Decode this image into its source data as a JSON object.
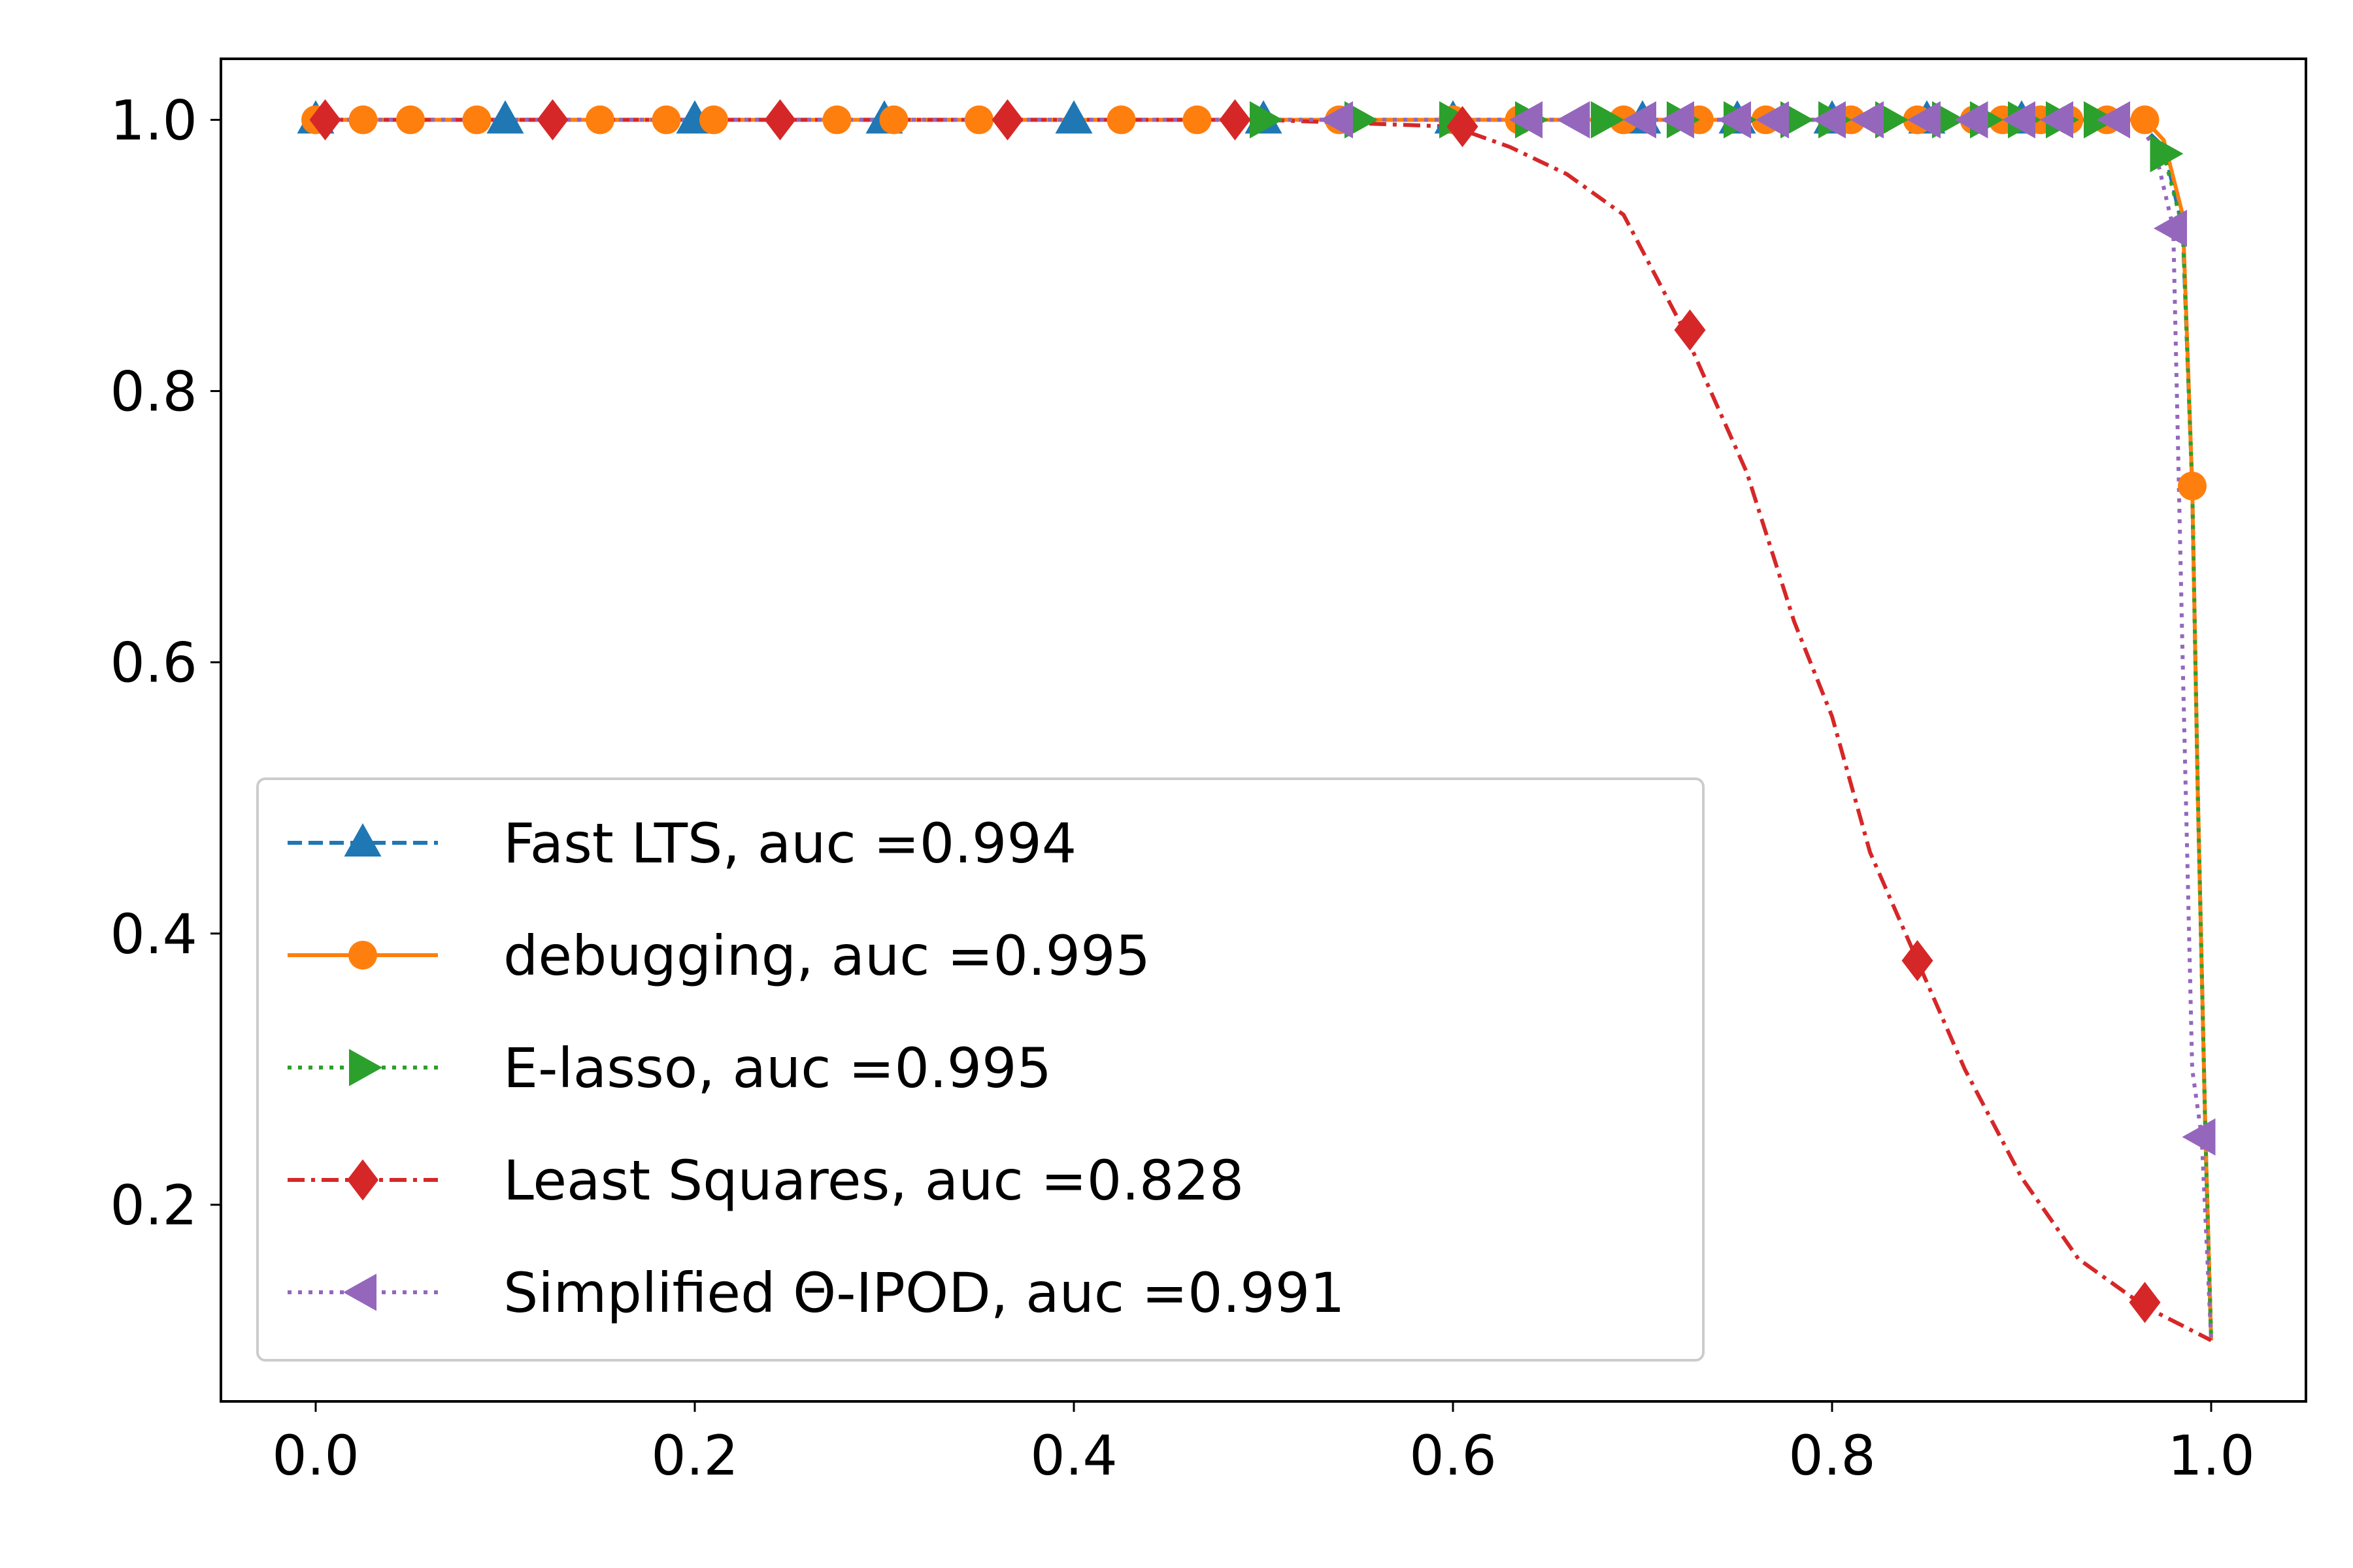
{
  "chart_data": {
    "type": "line",
    "title": "",
    "xlabel": "",
    "ylabel": "",
    "xlim": [
      -0.05,
      1.05
    ],
    "ylim": [
      0.055,
      1.045
    ],
    "grid": false,
    "legend_position": "lower-left",
    "x_ticks": [
      {
        "value": 0.0,
        "label": "0.0"
      },
      {
        "value": 0.2,
        "label": "0.2"
      },
      {
        "value": 0.4,
        "label": "0.4"
      },
      {
        "value": 0.6,
        "label": "0.6"
      },
      {
        "value": 0.8,
        "label": "0.8"
      },
      {
        "value": 1.0,
        "label": "1.0"
      }
    ],
    "y_ticks": [
      {
        "value": 0.2,
        "label": "0.2"
      },
      {
        "value": 0.4,
        "label": "0.4"
      },
      {
        "value": 0.6,
        "label": "0.6"
      },
      {
        "value": 0.8,
        "label": "0.8"
      },
      {
        "value": 1.0,
        "label": "1.0"
      }
    ],
    "series": [
      {
        "name": "Fast LTS, auc =0.994",
        "color": "#1f77b4",
        "linestyle": "dashed",
        "marker": "triangle-up",
        "x": [
          0.0,
          0.2,
          0.4,
          0.6,
          0.7,
          0.8,
          0.9,
          0.96,
          0.975,
          0.985,
          0.99,
          0.993,
          0.997,
          1.0
        ],
        "y": [
          1.0,
          1.0,
          1.0,
          1.0,
          1.0,
          1.0,
          1.0,
          1.0,
          0.98,
          0.92,
          0.73,
          0.5,
          0.25,
          0.1
        ],
        "marker_x": [
          0.0,
          0.1,
          0.2,
          0.3,
          0.4,
          0.5,
          0.6,
          0.7,
          0.75,
          0.8,
          0.85,
          0.9
        ],
        "marker_y": [
          1.0,
          1.0,
          1.0,
          1.0,
          1.0,
          1.0,
          1.0,
          1.0,
          1.0,
          1.0,
          1.0,
          1.0
        ]
      },
      {
        "name": "debugging, auc =0.995",
        "color": "#ff7f0e",
        "linestyle": "solid",
        "marker": "circle",
        "x": [
          0.0,
          0.2,
          0.4,
          0.6,
          0.7,
          0.8,
          0.9,
          0.965,
          0.975,
          0.985,
          0.99,
          0.993,
          0.997,
          1.0
        ],
        "y": [
          1.0,
          1.0,
          1.0,
          1.0,
          1.0,
          1.0,
          1.0,
          1.0,
          0.985,
          0.93,
          0.73,
          0.5,
          0.25,
          0.1
        ],
        "marker_x": [
          0.0,
          0.025,
          0.05,
          0.085,
          0.15,
          0.185,
          0.21,
          0.275,
          0.305,
          0.35,
          0.425,
          0.465,
          0.54,
          0.6,
          0.635,
          0.69,
          0.73,
          0.765,
          0.81,
          0.825,
          0.845,
          0.875,
          0.89,
          0.91,
          0.925,
          0.945,
          0.965,
          0.99
        ],
        "marker_y": [
          1.0,
          1.0,
          1.0,
          1.0,
          1.0,
          1.0,
          1.0,
          1.0,
          1.0,
          1.0,
          1.0,
          1.0,
          1.0,
          1.0,
          1.0,
          1.0,
          1.0,
          1.0,
          1.0,
          1.0,
          1.0,
          1.0,
          1.0,
          1.0,
          1.0,
          1.0,
          1.0,
          0.73
        ]
      },
      {
        "name": "E-lasso, auc =0.995",
        "color": "#2ca02c",
        "linestyle": "dotted",
        "marker": "triangle-right",
        "x": [
          0.0,
          0.2,
          0.4,
          0.6,
          0.7,
          0.8,
          0.9,
          0.96,
          0.975,
          0.985,
          0.99,
          0.993,
          0.997,
          1.0
        ],
        "y": [
          1.0,
          1.0,
          1.0,
          1.0,
          1.0,
          1.0,
          1.0,
          1.0,
          0.975,
          0.92,
          0.73,
          0.5,
          0.25,
          0.1
        ],
        "marker_x": [
          0.5,
          0.55,
          0.6,
          0.64,
          0.68,
          0.72,
          0.75,
          0.78,
          0.8,
          0.83,
          0.86,
          0.88,
          0.9,
          0.92,
          0.94,
          0.975
        ],
        "marker_y": [
          1.0,
          1.0,
          1.0,
          1.0,
          1.0,
          1.0,
          1.0,
          1.0,
          1.0,
          1.0,
          1.0,
          1.0,
          1.0,
          1.0,
          1.0,
          0.975
        ]
      },
      {
        "name": "Least Squares, auc =0.828",
        "color": "#d62728",
        "linestyle": "dashdot",
        "marker": "diamond",
        "x": [
          0.0,
          0.2,
          0.4,
          0.5,
          0.6,
          0.63,
          0.66,
          0.69,
          0.72,
          0.755,
          0.78,
          0.8,
          0.82,
          0.845,
          0.87,
          0.9,
          0.93,
          0.965,
          1.0
        ],
        "y": [
          1.0,
          1.0,
          1.0,
          1.0,
          0.995,
          0.98,
          0.96,
          0.93,
          0.85,
          0.74,
          0.63,
          0.56,
          0.46,
          0.38,
          0.3,
          0.22,
          0.16,
          0.125,
          0.1
        ],
        "marker_x": [
          0.005,
          0.125,
          0.245,
          0.365,
          0.485,
          0.605,
          0.725,
          0.845,
          0.965
        ],
        "marker_y": [
          1.0,
          1.0,
          1.0,
          1.0,
          1.0,
          0.995,
          0.845,
          0.38,
          0.128
        ]
      },
      {
        "name": "Simplified Θ-IPOD, auc =0.991",
        "color": "#9467bd",
        "linestyle": "dotted",
        "marker": "triangle-left",
        "x": [
          0.0,
          0.2,
          0.4,
          0.6,
          0.7,
          0.8,
          0.9,
          0.96,
          0.97,
          0.98,
          0.985,
          0.99,
          0.995,
          1.0
        ],
        "y": [
          1.0,
          1.0,
          1.0,
          1.0,
          1.0,
          1.0,
          1.0,
          1.0,
          0.98,
          0.92,
          0.6,
          0.3,
          0.25,
          0.1
        ],
        "marker_x": [
          0.54,
          0.64,
          0.665,
          0.7,
          0.72,
          0.75,
          0.77,
          0.8,
          0.82,
          0.85,
          0.875,
          0.9,
          0.92,
          0.95,
          0.98,
          0.995
        ],
        "marker_y": [
          1.0,
          1.0,
          1.0,
          1.0,
          1.0,
          1.0,
          1.0,
          1.0,
          1.0,
          1.0,
          1.0,
          1.0,
          1.0,
          1.0,
          0.92,
          0.25
        ]
      }
    ]
  }
}
